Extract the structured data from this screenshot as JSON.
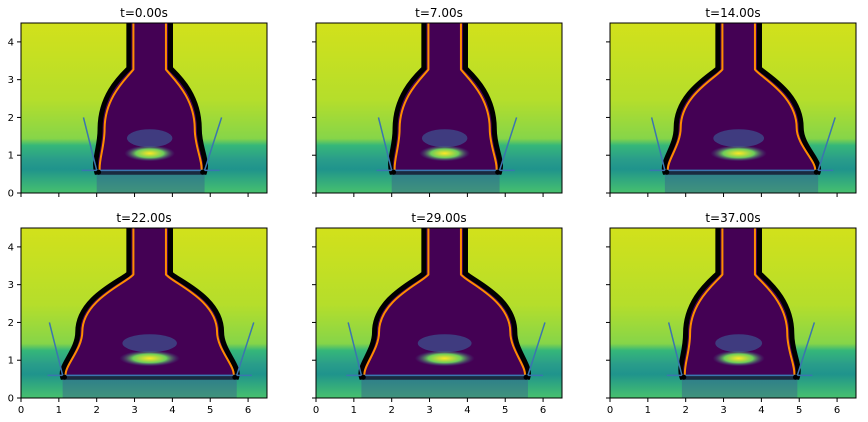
{
  "figure": {
    "panels": [
      {
        "title": "t=0.00s",
        "contact_left": 2.0,
        "contact_right": 4.85,
        "width_scale": 0.62,
        "baseline_y": 0.6,
        "show_xticklabels": false,
        "show_yticklabels": true
      },
      {
        "title": "t=7.00s",
        "contact_left": 2.0,
        "contact_right": 4.85,
        "width_scale": 0.62,
        "baseline_y": 0.6,
        "show_xticklabels": false,
        "show_yticklabels": false
      },
      {
        "title": "t=14.00s",
        "contact_left": 1.45,
        "contact_right": 5.5,
        "width_scale": 0.84,
        "baseline_y": 0.6,
        "show_xticklabels": false,
        "show_yticklabels": false
      },
      {
        "title": "t=22.00s",
        "contact_left": 1.1,
        "contact_right": 5.7,
        "width_scale": 1.0,
        "baseline_y": 0.6,
        "show_xticklabels": true,
        "show_yticklabels": true
      },
      {
        "title": "t=29.00s",
        "contact_left": 1.2,
        "contact_right": 5.6,
        "width_scale": 0.97,
        "baseline_y": 0.6,
        "show_xticklabels": true,
        "show_yticklabels": false
      },
      {
        "title": "t=37.00s",
        "contact_left": 1.9,
        "contact_right": 4.95,
        "width_scale": 0.68,
        "baseline_y": 0.6,
        "show_xticklabels": true,
        "show_yticklabels": false
      }
    ],
    "x_ticks": [
      "0",
      "1",
      "2",
      "3",
      "4",
      "5",
      "6"
    ],
    "y_ticks": [
      "0",
      "1",
      "2",
      "3",
      "4"
    ],
    "xlim": [
      0,
      6.5
    ],
    "ylim": [
      0,
      4.5
    ],
    "colors": {
      "background_top": "#c9e02a",
      "background_mid": "#8fcf46",
      "band": "#24a186",
      "band_dark": "#2c7f8e",
      "droplet": "#440154",
      "edge": "#000000",
      "edge_fit": "#ff8c00",
      "tangent": "#3b75af",
      "reflection": "#fde725"
    }
  }
}
